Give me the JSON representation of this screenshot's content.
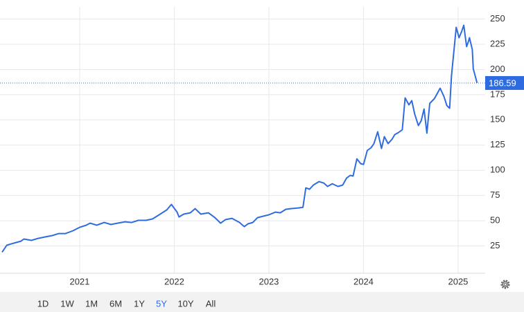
{
  "chart_data": {
    "type": "line",
    "color": "#2f6be0",
    "grid": true,
    "x": [
      2020.18,
      2020.23,
      2020.3,
      2020.38,
      2020.41,
      2020.49,
      2020.56,
      2020.63,
      2020.71,
      2020.78,
      2020.85,
      2020.93,
      2021.0,
      2021.07,
      2021.11,
      2021.18,
      2021.26,
      2021.33,
      2021.4,
      2021.48,
      2021.55,
      2021.62,
      2021.7,
      2021.77,
      2021.84,
      2021.92,
      2021.97,
      2022.03,
      2022.05,
      2022.1,
      2022.17,
      2022.22,
      2022.28,
      2022.36,
      2022.43,
      2022.49,
      2022.54,
      2022.61,
      2022.69,
      2022.74,
      2022.78,
      2022.83,
      2022.88,
      2022.94,
      2023.0,
      2023.07,
      2023.12,
      2023.18,
      2023.23,
      2023.31,
      2023.36,
      2023.39,
      2023.43,
      2023.47,
      2023.53,
      2023.58,
      2023.62,
      2023.67,
      2023.73,
      2023.78,
      2023.82,
      2023.86,
      2023.89,
      2023.93,
      2023.97,
      2024.0,
      2024.04,
      2024.08,
      2024.11,
      2024.15,
      2024.19,
      2024.22,
      2024.26,
      2024.3,
      2024.33,
      2024.37,
      2024.41,
      2024.44,
      2024.48,
      2024.51,
      2024.54,
      2024.58,
      2024.61,
      2024.64,
      2024.67,
      2024.7,
      2024.75,
      2024.79,
      2024.81,
      2024.85,
      2024.88,
      2024.91,
      2024.93,
      2024.96,
      2024.98,
      2025.01,
      2025.04,
      2025.06,
      2025.09,
      2025.11,
      2025.12,
      2025.15,
      2025.16,
      2025.18,
      2025.2
    ],
    "values": [
      18.8,
      25.7,
      27.7,
      29.8,
      31.9,
      30.5,
      32.5,
      33.9,
      35.3,
      37.3,
      37.3,
      40.1,
      43.5,
      45.6,
      47.6,
      45.6,
      48.3,
      46.3,
      47.6,
      49.0,
      48.3,
      50.4,
      50.4,
      51.8,
      55.9,
      60.7,
      66.2,
      58.6,
      53.8,
      56.6,
      57.9,
      62.0,
      56.6,
      57.9,
      53.1,
      47.6,
      51.1,
      52.4,
      48.3,
      44.2,
      47.0,
      48.3,
      53.1,
      54.5,
      55.9,
      58.6,
      57.9,
      61.4,
      62.0,
      62.7,
      63.4,
      82.6,
      81.3,
      85.4,
      88.8,
      87.4,
      84.0,
      86.7,
      84.0,
      85.4,
      92.2,
      95.0,
      94.3,
      111.4,
      106.6,
      105.9,
      119.7,
      122.4,
      126.5,
      138.2,
      121.7,
      133.4,
      126.5,
      130.6,
      135.4,
      137.5,
      140.2,
      171.8,
      164.9,
      169.1,
      156.0,
      144.4,
      149.2,
      160.8,
      136.8,
      166.3,
      171.1,
      178.0,
      181.4,
      173.2,
      164.3,
      161.5,
      193.8,
      222.6,
      241.8,
      231.5,
      238.3,
      243.8,
      222.6,
      228.1,
      231.5,
      219.8,
      200.6,
      193.8,
      186.59
    ],
    "last_value": 186.59,
    "xlim": [
      2020.158,
      2025.286
    ],
    "xticks": [
      2021,
      2022,
      2023,
      2024,
      2025
    ],
    "ylim": [
      0,
      262
    ],
    "yticks": [
      25,
      50,
      75,
      100,
      125,
      150,
      175,
      200,
      225,
      250
    ]
  },
  "controls": {
    "ranges": [
      "1D",
      "1W",
      "1M",
      "6M",
      "1Y",
      "5Y",
      "10Y",
      "All"
    ],
    "selected": 5
  }
}
